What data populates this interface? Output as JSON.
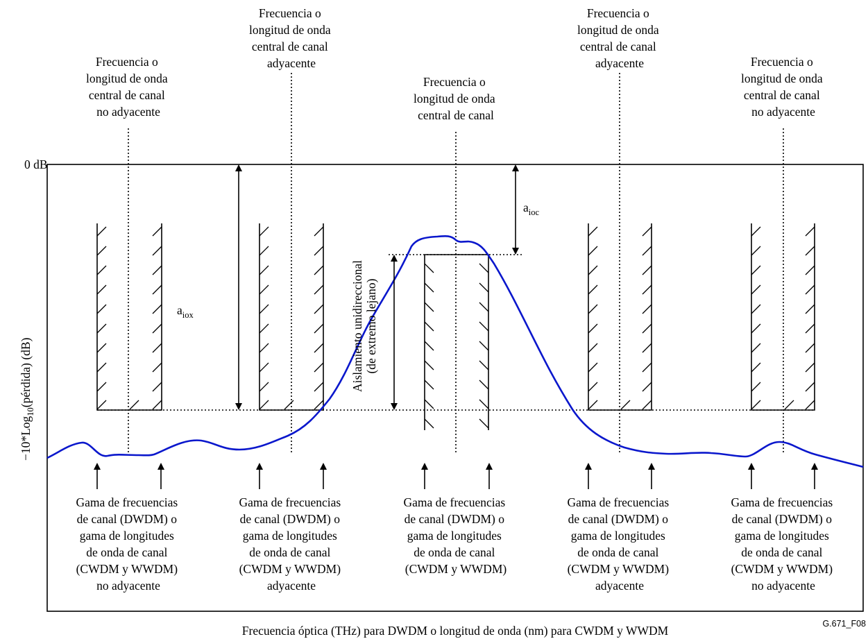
{
  "y_axis": {
    "zero_label": "0 dB",
    "label_prefix": "−10*Log",
    "label_sub": "10",
    "label_suffix": "(pérdida) (dB)"
  },
  "x_axis_label": "Frecuencia óptica (THz) para DWDM o longitud de onda (nm) para CWDM y WWDM",
  "figure_tag": "G.671_F08",
  "top_labels": {
    "non_adjacent": [
      "Frecuencia o",
      "longitud de onda",
      "central de canal",
      "no adyacente"
    ],
    "adjacent": [
      "Frecuencia o",
      "longitud de onda",
      "central de canal",
      "adyacente"
    ],
    "central": [
      "Frecuencia o",
      "longitud de onda",
      "central de canal"
    ]
  },
  "bottom_labels": {
    "non_adjacent": [
      "Gama de frecuencias",
      "de canal (DWDM) o",
      "gama de longitudes",
      "de onda de canal",
      "(CWDM y WWDM)",
      "no adyacente"
    ],
    "adjacent": [
      "Gama de frecuencias",
      "de canal (DWDM) o",
      "gama de longitudes",
      "de onda de canal",
      "(CWDM y WWDM)",
      "adyacente"
    ],
    "central": [
      "Gama de frecuencias",
      "de canal (DWDM) o",
      "gama de longitudes",
      "de onda de canal",
      "(CWDM y WWDM)"
    ]
  },
  "annotations": {
    "aiox_main": "a",
    "aiox_sub": "iox",
    "aioc_main": "a",
    "aioc_sub": "ioc",
    "isolation_line1": "Aislamiento unidireccional",
    "isolation_line2": "(de extremo lejano)"
  },
  "colors": {
    "curve": "#0a17cc",
    "lines": "#000000"
  }
}
